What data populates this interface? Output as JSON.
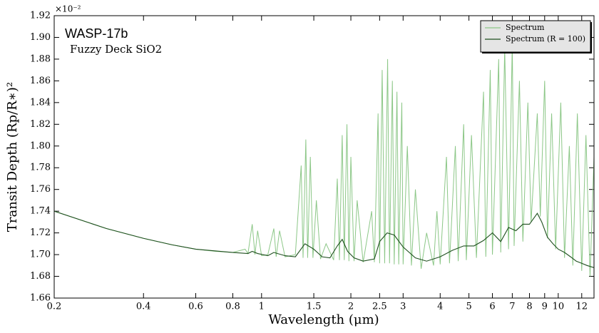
{
  "chart_data": {
    "type": "line",
    "title": "WASP-17b",
    "subtitle": "Fuzzy Deck SiO2",
    "x_label": "Wavelength (μm)",
    "y_label": "Transit Depth (Rp/R∗)²",
    "y_offset_label": "×10⁻²",
    "xscale": "log",
    "xlim": [
      0.2,
      13.2
    ],
    "ylim": [
      1.66,
      1.92
    ],
    "xticks": [
      0.2,
      0.4,
      0.6,
      0.8,
      1,
      1.5,
      2,
      2.5,
      3,
      4,
      5,
      6,
      7,
      8,
      9,
      10,
      12
    ],
    "yticks": [
      1.66,
      1.68,
      {
        "value": 1.7,
        "label": "1.70"
      },
      1.72,
      1.74,
      1.76,
      1.78,
      {
        "value": 1.8,
        "label": "1.80"
      },
      1.82,
      1.84,
      1.86,
      1.88,
      {
        "value": 1.9,
        "label": "1.90"
      },
      1.92
    ],
    "legend": "upper right",
    "series": [
      {
        "name": "Spectrum",
        "color": "#8cc787",
        "x": [
          0.2,
          0.3,
          0.4,
          0.5,
          0.6,
          0.7,
          0.8,
          0.88,
          0.9,
          0.93,
          0.95,
          0.97,
          1.0,
          1.05,
          1.1,
          1.12,
          1.15,
          1.2,
          1.3,
          1.36,
          1.38,
          1.41,
          1.43,
          1.46,
          1.49,
          1.53,
          1.58,
          1.65,
          1.75,
          1.8,
          1.83,
          1.87,
          1.9,
          1.94,
          1.97,
          2.0,
          2.05,
          2.1,
          2.2,
          2.35,
          2.4,
          2.47,
          2.5,
          2.55,
          2.6,
          2.66,
          2.7,
          2.76,
          2.8,
          2.86,
          2.9,
          2.97,
          3.0,
          3.1,
          3.2,
          3.3,
          3.45,
          3.6,
          3.8,
          3.9,
          4.0,
          4.2,
          4.3,
          4.5,
          4.6,
          4.8,
          4.9,
          5.1,
          5.3,
          5.6,
          5.7,
          5.9,
          6.0,
          6.3,
          6.4,
          6.6,
          6.8,
          7.0,
          7.1,
          7.4,
          7.6,
          7.9,
          8.1,
          8.5,
          8.7,
          9.0,
          9.2,
          9.5,
          9.8,
          10.2,
          10.5,
          10.9,
          11.2,
          11.6,
          12.0,
          12.4,
          12.8,
          13.2
        ],
        "values": [
          1.74,
          1.724,
          1.715,
          1.709,
          1.705,
          1.703,
          1.702,
          1.705,
          1.701,
          1.728,
          1.7,
          1.722,
          1.699,
          1.7,
          1.724,
          1.698,
          1.722,
          1.698,
          1.7,
          1.782,
          1.697,
          1.806,
          1.697,
          1.79,
          1.697,
          1.75,
          1.696,
          1.71,
          1.695,
          1.77,
          1.695,
          1.81,
          1.695,
          1.82,
          1.694,
          1.79,
          1.694,
          1.75,
          1.693,
          1.74,
          1.693,
          1.83,
          1.692,
          1.87,
          1.692,
          1.88,
          1.692,
          1.86,
          1.691,
          1.85,
          1.691,
          1.84,
          1.691,
          1.8,
          1.69,
          1.76,
          1.687,
          1.72,
          1.69,
          1.74,
          1.691,
          1.79,
          1.692,
          1.8,
          1.694,
          1.82,
          1.695,
          1.81,
          1.697,
          1.85,
          1.698,
          1.87,
          1.7,
          1.88,
          1.702,
          1.89,
          1.705,
          1.895,
          1.708,
          1.86,
          1.712,
          1.84,
          1.73,
          1.83,
          1.735,
          1.86,
          1.715,
          1.83,
          1.705,
          1.84,
          1.697,
          1.8,
          1.69,
          1.83,
          1.685,
          1.81,
          1.68,
          1.79
        ]
      },
      {
        "name": "Spectrum (R = 100)",
        "color": "#1f4f1f",
        "x": [
          0.2,
          0.3,
          0.4,
          0.5,
          0.6,
          0.8,
          0.9,
          0.93,
          0.97,
          1.05,
          1.1,
          1.2,
          1.3,
          1.4,
          1.5,
          1.6,
          1.7,
          1.8,
          1.87,
          1.95,
          2.05,
          2.2,
          2.4,
          2.5,
          2.65,
          2.8,
          3.0,
          3.3,
          3.6,
          4.0,
          4.4,
          4.8,
          5.2,
          5.6,
          6.0,
          6.4,
          6.8,
          7.2,
          7.6,
          8.0,
          8.5,
          8.8,
          9.2,
          9.6,
          10,
          10.5,
          11,
          11.5,
          12,
          12.5,
          13.2
        ],
        "values": [
          1.74,
          1.724,
          1.715,
          1.709,
          1.705,
          1.702,
          1.701,
          1.703,
          1.701,
          1.699,
          1.702,
          1.699,
          1.698,
          1.71,
          1.705,
          1.698,
          1.697,
          1.708,
          1.714,
          1.703,
          1.697,
          1.694,
          1.696,
          1.712,
          1.72,
          1.718,
          1.707,
          1.697,
          1.694,
          1.698,
          1.704,
          1.708,
          1.708,
          1.713,
          1.72,
          1.712,
          1.725,
          1.722,
          1.728,
          1.728,
          1.738,
          1.73,
          1.716,
          1.71,
          1.705,
          1.702,
          1.698,
          1.694,
          1.692,
          1.69,
          1.688
        ]
      }
    ]
  }
}
